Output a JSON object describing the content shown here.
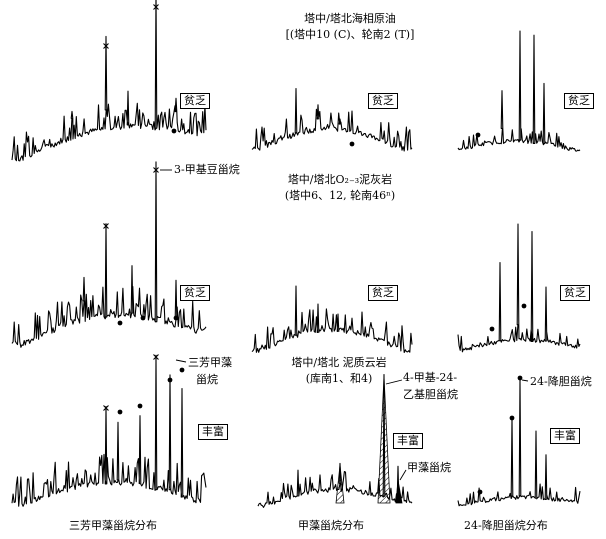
{
  "rows": [
    {
      "heading": "塔中/塔北海相原油",
      "subheading": "[(塔中10 (C)、轮南2 (T)]"
    },
    {
      "heading": "塔中/塔北O₂₋₃泥灰岩",
      "subheading": "(塔中6、12, 轮南46ⁿ)"
    },
    {
      "heading": "塔中/塔北 泥质云岩",
      "subheading": "(库南1、和4)"
    }
  ],
  "abundance": {
    "poor": "贫乏",
    "rich": "丰富"
  },
  "annotations": {
    "methyl_steranes": "3-甲基豆甾烷",
    "triaromatic_l1": "三芳甲藻",
    "triaromatic_l2": "甾烷",
    "ethyl_chol_l1": "4-甲基-24-",
    "ethyl_chol_l2": "乙基胆甾烷",
    "dinosterane": "甲藻甾烷",
    "norcholestane": "24-降胆甾烷"
  },
  "captions": {
    "left": "三芳甲藻甾烷分布",
    "middle": "甲藻甾烷分布",
    "right": "24-降胆甾烷分布"
  },
  "colors": {
    "ink": "#000000",
    "background": "#ffffff"
  }
}
